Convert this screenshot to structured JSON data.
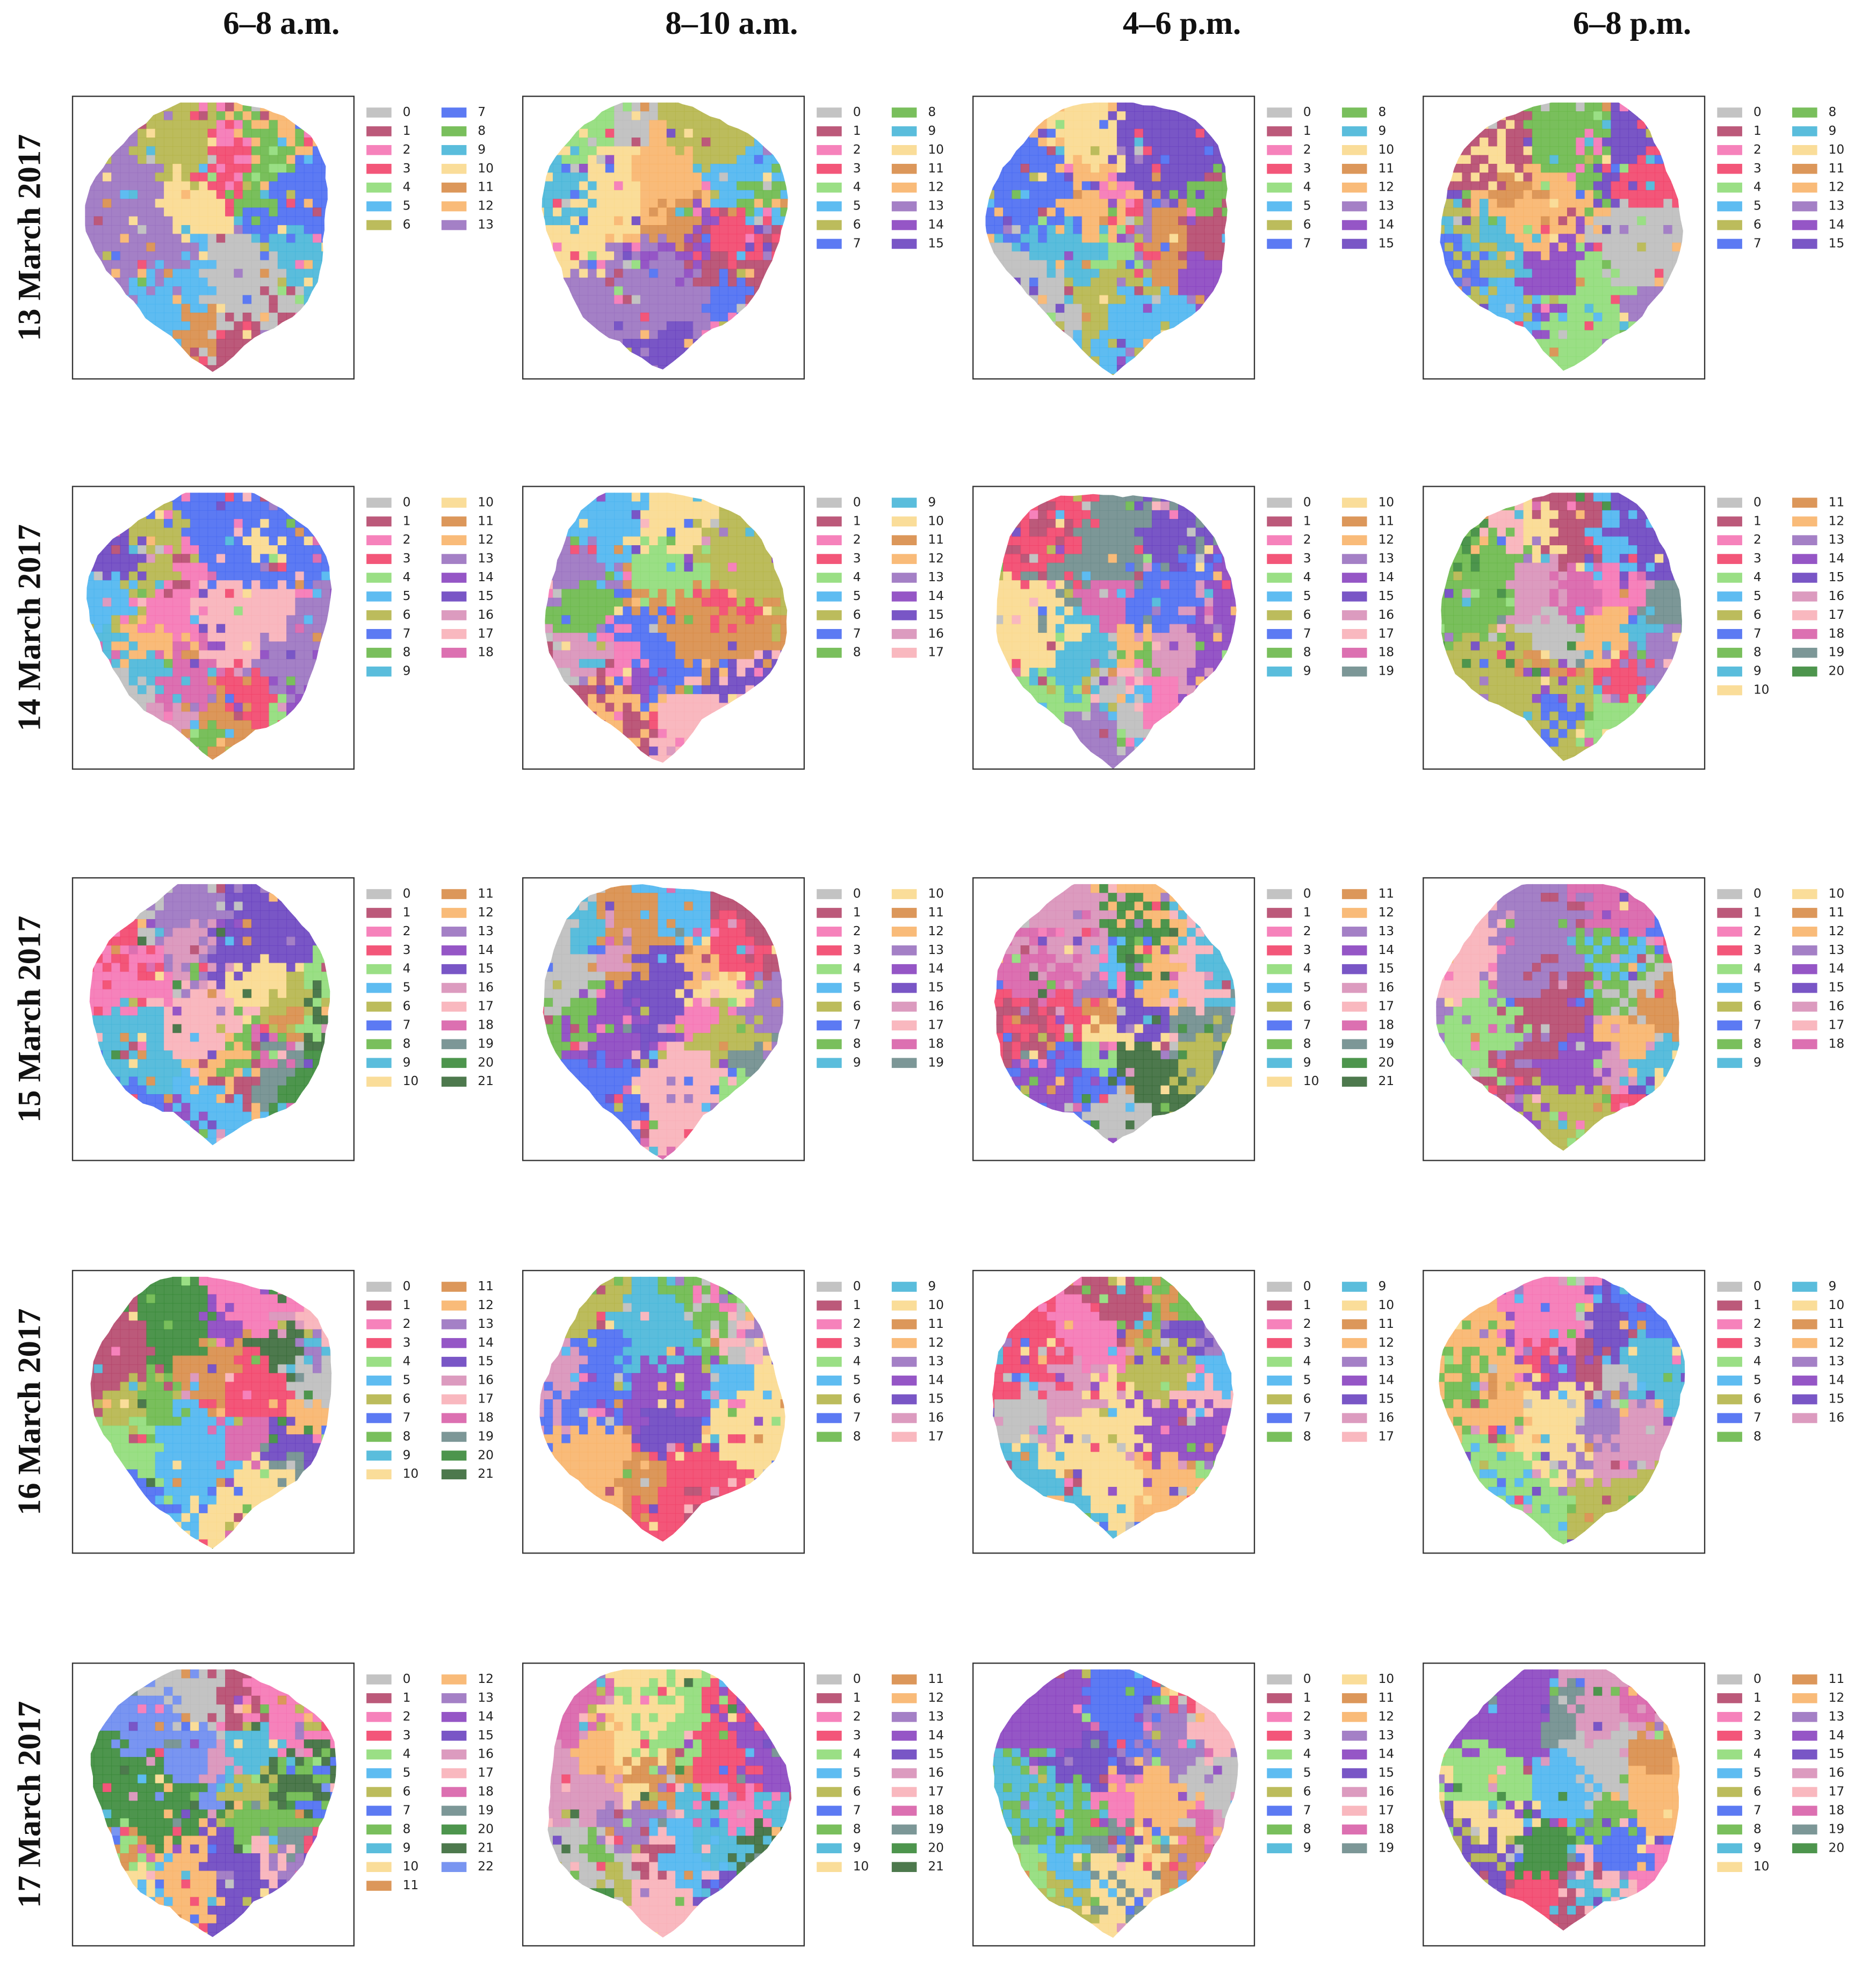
{
  "column_headers": [
    "6–8 a.m.",
    "8–10 a.m.",
    "4–6 p.m.",
    "6–8 p.m."
  ],
  "palette": [
    "#bdbdbd",
    "#b5476b",
    "#f574b4",
    "#f2446a",
    "#8fdc78",
    "#4db5f0",
    "#b5b54a",
    "#4a6cf2",
    "#6ab84a",
    "#48b6d8",
    "#fad98e",
    "#d88c48",
    "#f8b46a",
    "#9a72c0",
    "#8a44c0",
    "#6a44c0",
    "#d890b8",
    "#f8b0b8",
    "#d860a8",
    "#6e8c8c",
    "#3a8a3a",
    "#3a6a3a",
    "#6a8af0"
  ],
  "rows": [
    {
      "label": "13 March 2017",
      "panels": [
        {
          "legend": [
            0,
            1,
            2,
            3,
            4,
            5,
            6,
            7,
            8,
            9,
            10,
            11,
            12,
            13
          ]
        },
        {
          "legend": [
            0,
            1,
            2,
            3,
            4,
            5,
            6,
            7,
            8,
            9,
            10,
            11,
            12,
            13,
            14,
            15
          ]
        },
        {
          "legend": [
            0,
            1,
            2,
            3,
            4,
            5,
            6,
            7,
            8,
            9,
            10,
            11,
            12,
            13,
            14,
            15
          ]
        },
        {
          "legend": [
            0,
            1,
            2,
            3,
            4,
            5,
            6,
            7,
            8,
            9,
            10,
            11,
            12,
            13,
            14,
            15
          ]
        }
      ]
    },
    {
      "label": "14 March 2017",
      "panels": [
        {
          "legend": [
            0,
            1,
            2,
            3,
            4,
            5,
            6,
            7,
            8,
            9,
            10,
            11,
            12,
            13,
            14,
            15,
            16,
            17,
            18
          ]
        },
        {
          "legend": [
            0,
            1,
            2,
            3,
            4,
            5,
            6,
            7,
            8,
            9,
            10,
            11,
            12,
            13,
            14,
            15,
            16,
            17
          ]
        },
        {
          "legend": [
            0,
            1,
            2,
            3,
            4,
            5,
            6,
            7,
            8,
            9,
            10,
            11,
            12,
            13,
            14,
            15,
            16,
            17,
            18,
            19
          ]
        },
        {
          "legend": [
            0,
            1,
            2,
            3,
            4,
            5,
            6,
            7,
            8,
            9,
            10,
            11,
            12,
            13,
            14,
            15,
            16,
            17,
            18,
            19,
            20
          ]
        }
      ]
    },
    {
      "label": "15 March 2017",
      "panels": [
        {
          "legend": [
            0,
            1,
            2,
            3,
            4,
            5,
            6,
            7,
            8,
            9,
            10,
            11,
            12,
            13,
            14,
            15,
            16,
            17,
            18,
            19,
            20,
            21
          ]
        },
        {
          "legend": [
            0,
            1,
            2,
            3,
            4,
            5,
            6,
            7,
            8,
            9,
            10,
            11,
            12,
            13,
            14,
            15,
            16,
            17,
            18,
            19
          ]
        },
        {
          "legend": [
            0,
            1,
            2,
            3,
            4,
            5,
            6,
            7,
            8,
            9,
            10,
            11,
            12,
            13,
            14,
            15,
            16,
            17,
            18,
            19,
            20,
            21
          ]
        },
        {
          "legend": [
            0,
            1,
            2,
            3,
            4,
            5,
            6,
            7,
            8,
            9,
            10,
            11,
            12,
            13,
            14,
            15,
            16,
            17,
            18
          ]
        }
      ]
    },
    {
      "label": "16 March 2017",
      "panels": [
        {
          "legend": [
            0,
            1,
            2,
            3,
            4,
            5,
            6,
            7,
            8,
            9,
            10,
            11,
            12,
            13,
            14,
            15,
            16,
            17,
            18,
            19,
            20,
            21
          ]
        },
        {
          "legend": [
            0,
            1,
            2,
            3,
            4,
            5,
            6,
            7,
            8,
            9,
            10,
            11,
            12,
            13,
            14,
            15,
            16,
            17
          ]
        },
        {
          "legend": [
            0,
            1,
            2,
            3,
            4,
            5,
            6,
            7,
            8,
            9,
            10,
            11,
            12,
            13,
            14,
            15,
            16,
            17
          ]
        },
        {
          "legend": [
            0,
            1,
            2,
            3,
            4,
            5,
            6,
            7,
            8,
            9,
            10,
            11,
            12,
            13,
            14,
            15,
            16
          ]
        }
      ]
    },
    {
      "label": "17 March 2017",
      "panels": [
        {
          "legend": [
            0,
            1,
            2,
            3,
            4,
            5,
            6,
            7,
            8,
            9,
            10,
            11,
            12,
            13,
            14,
            15,
            16,
            17,
            18,
            19,
            20,
            21,
            22
          ]
        },
        {
          "legend": [
            0,
            1,
            2,
            3,
            4,
            5,
            6,
            7,
            8,
            9,
            10,
            11,
            12,
            13,
            14,
            15,
            16,
            17,
            18,
            19,
            20,
            21
          ]
        },
        {
          "legend": [
            0,
            1,
            2,
            3,
            4,
            5,
            6,
            7,
            8,
            9,
            10,
            11,
            12,
            13,
            14,
            15,
            16,
            17,
            18,
            19
          ]
        },
        {
          "legend": [
            0,
            1,
            2,
            3,
            4,
            5,
            6,
            7,
            8,
            9,
            10,
            11,
            12,
            13,
            14,
            15,
            16,
            17,
            18,
            19,
            20
          ]
        }
      ]
    }
  ]
}
